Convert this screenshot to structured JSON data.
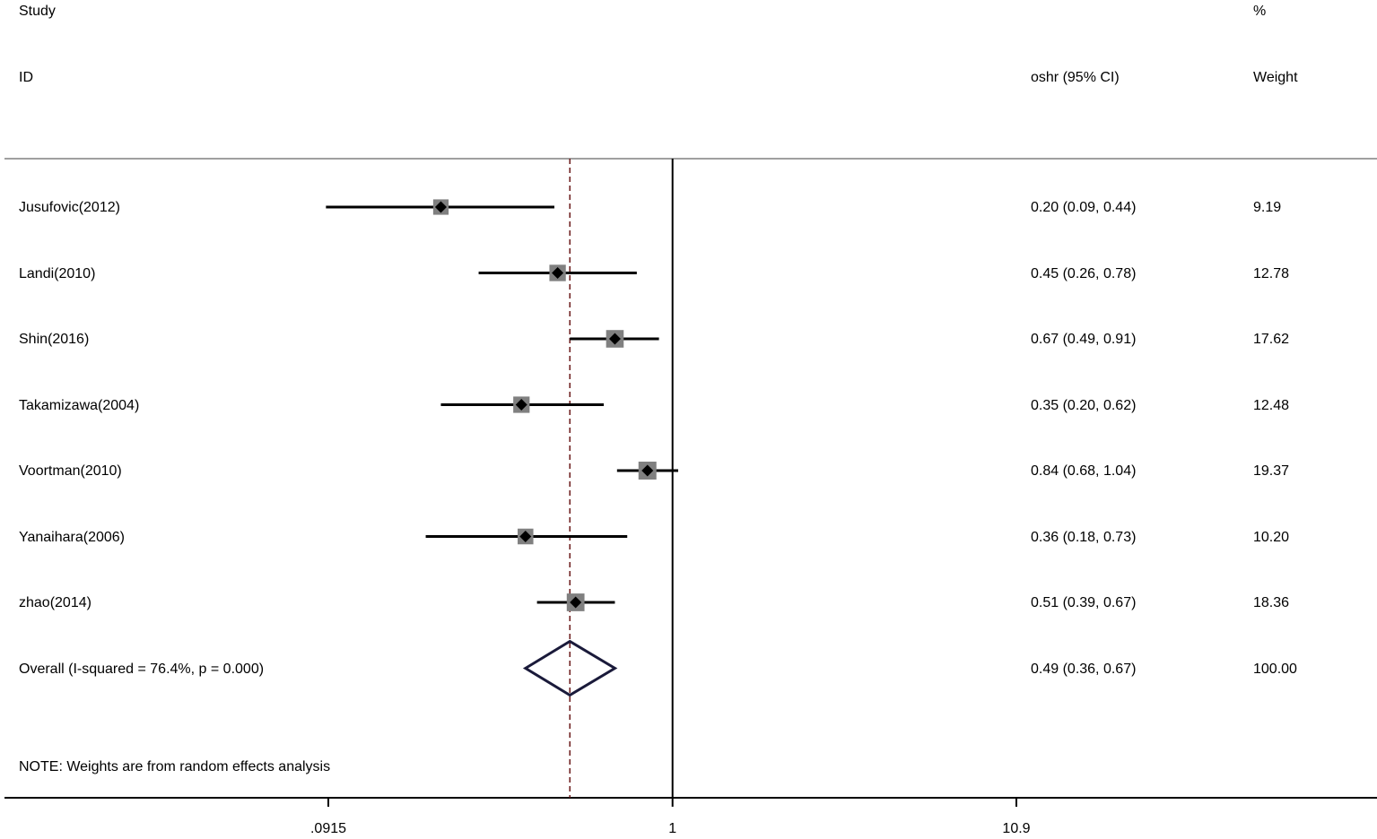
{
  "header": {
    "study_label": "Study",
    "id_label": "ID",
    "effect_label": "oshr (95% CI)",
    "percent_label": "%",
    "weight_label": "Weight"
  },
  "chart_data": {
    "type": "forest",
    "scale": "log",
    "x_ticks": [
      {
        "value": 0.0915,
        "label": ".0915"
      },
      {
        "value": 1,
        "label": "1"
      },
      {
        "value": 10.9,
        "label": "10.9"
      }
    ],
    "xlim": [
      0.0915,
      10.9
    ],
    "null_line": 1,
    "overall_line": 0.49,
    "studies": [
      {
        "id": "Jusufovic(2012)",
        "est": 0.2,
        "lo": 0.09,
        "hi": 0.44,
        "text": "0.20 (0.09, 0.44)",
        "weight": "9.19"
      },
      {
        "id": "Landi(2010)",
        "est": 0.45,
        "lo": 0.26,
        "hi": 0.78,
        "text": "0.45 (0.26, 0.78)",
        "weight": "12.78"
      },
      {
        "id": "Shin(2016)",
        "est": 0.67,
        "lo": 0.49,
        "hi": 0.91,
        "text": "0.67 (0.49, 0.91)",
        "weight": "17.62"
      },
      {
        "id": "Takamizawa(2004)",
        "est": 0.35,
        "lo": 0.2,
        "hi": 0.62,
        "text": "0.35 (0.20, 0.62)",
        "weight": "12.48"
      },
      {
        "id": "Voortman(2010)",
        "est": 0.84,
        "lo": 0.68,
        "hi": 1.04,
        "text": "0.84 (0.68, 1.04)",
        "weight": "19.37"
      },
      {
        "id": "Yanaihara(2006)",
        "est": 0.36,
        "lo": 0.18,
        "hi": 0.73,
        "text": "0.36 (0.18, 0.73)",
        "weight": "10.20"
      },
      {
        "id": "zhao(2014)",
        "est": 0.51,
        "lo": 0.39,
        "hi": 0.67,
        "text": "0.51 (0.39, 0.67)",
        "weight": "18.36"
      }
    ],
    "overall": {
      "id": "Overall  (I-squared = 76.4%, p = 0.000)",
      "est": 0.49,
      "lo": 0.36,
      "hi": 0.67,
      "text": "0.49 (0.36, 0.67)",
      "weight": "100.00"
    },
    "note": "NOTE: Weights are from random effects analysis",
    "colors": {
      "line": "#000000",
      "box": "#808080",
      "diamond": "#1a1a3a",
      "overall_line": "#6b1a1a",
      "rule": "#808080"
    }
  }
}
